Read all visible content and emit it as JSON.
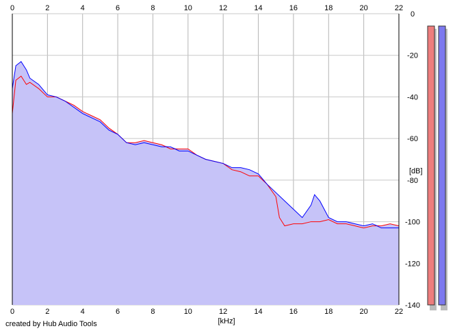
{
  "chart_data": {
    "type": "area",
    "title": "",
    "xlabel": "[kHz]",
    "ylabel": "[dB]",
    "xlim": [
      0,
      22
    ],
    "ylim": [
      -140,
      0
    ],
    "x_ticks": [
      0,
      2,
      4,
      6,
      8,
      10,
      12,
      14,
      16,
      18,
      20,
      22
    ],
    "x_tick_labels": [
      "0",
      "2",
      "4",
      "6",
      "8",
      "10",
      "12",
      "14",
      "16",
      "18",
      "20",
      "22"
    ],
    "y_ticks": [
      0,
      -20,
      -40,
      -60,
      -80,
      -100,
      -120,
      -140
    ],
    "y_tick_labels": [
      "0",
      "-20",
      "-40",
      "-60",
      "-80",
      "-100",
      "-120",
      "-140"
    ],
    "grid": true,
    "fill_color": "#c6c3f8",
    "series": [
      {
        "color": "#ff0000",
        "x": [
          0,
          0.2,
          0.5,
          0.8,
          1,
          1.5,
          2,
          2.5,
          3,
          3.5,
          4,
          4.5,
          5,
          5.5,
          6,
          6.5,
          7,
          7.5,
          8,
          8.5,
          9,
          9.5,
          10,
          10.5,
          11,
          11.5,
          12,
          12.5,
          13,
          13.5,
          14,
          14.5,
          15,
          15.2,
          15.5,
          16,
          16.5,
          17,
          17.5,
          18,
          18.5,
          19,
          19.5,
          20,
          20.5,
          21,
          21.5,
          22
        ],
        "values": [
          -48,
          -32,
          -30,
          -34,
          -33,
          -36,
          -40,
          -40,
          -42,
          -44,
          -47,
          -49,
          -51,
          -55,
          -58,
          -62,
          -62,
          -61,
          -62,
          -63,
          -65,
          -65,
          -65,
          -68,
          -70,
          -71,
          -72,
          -75,
          -76,
          -78,
          -78,
          -82,
          -88,
          -98,
          -102,
          -101,
          -101,
          -100,
          -100,
          -99,
          -101,
          -101,
          -102,
          -103,
          -102,
          -102,
          -101,
          -102
        ]
      },
      {
        "color": "#0000ff",
        "x": [
          0,
          0.2,
          0.5,
          0.8,
          1,
          1.5,
          2,
          2.5,
          3,
          3.5,
          4,
          4.5,
          5,
          5.5,
          6,
          6.5,
          7,
          7.5,
          8,
          8.5,
          9,
          9.5,
          10,
          10.5,
          11,
          11.5,
          12,
          12.5,
          13,
          13.5,
          14,
          14.5,
          15,
          15.5,
          16,
          16.5,
          17,
          17.2,
          17.5,
          18,
          18.5,
          19,
          19.5,
          20,
          20.5,
          21,
          21.5,
          22
        ],
        "values": [
          -36,
          -25,
          -23,
          -27,
          -31,
          -34,
          -39,
          -40,
          -42,
          -45,
          -48,
          -50,
          -52,
          -56,
          -58,
          -62,
          -63,
          -62,
          -63,
          -64,
          -64,
          -66,
          -66,
          -68,
          -70,
          -71,
          -72,
          -74,
          -74,
          -75,
          -77,
          -82,
          -86,
          -90,
          -94,
          -98,
          -92,
          -87,
          -90,
          -98,
          -100,
          -100,
          -101,
          -102,
          -101,
          -103,
          -103,
          -103
        ]
      }
    ],
    "level_meters": [
      {
        "color": "#ed7d7d"
      },
      {
        "color": "#7d79ef"
      }
    ]
  },
  "credit": "created by Hub Audio Tools"
}
